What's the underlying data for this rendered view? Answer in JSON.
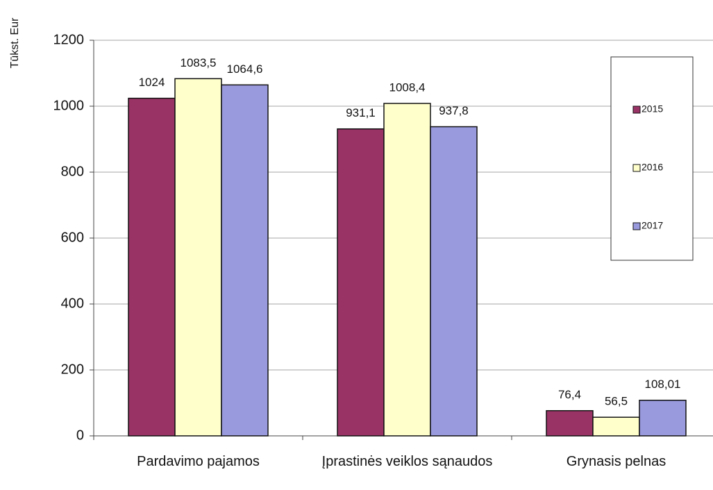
{
  "chart_data": {
    "type": "bar",
    "y_axis_label": "Tūkst. Eur",
    "categories": [
      "Pardavimo pajamos",
      "Įprastinės veiklos sąnaudos",
      "Grynasis pelnas"
    ],
    "series": [
      {
        "name": "2015",
        "color": "#993366",
        "values": [
          1024,
          931.1,
          76.4
        ],
        "value_labels": [
          "1024",
          "931,1",
          "76,4"
        ]
      },
      {
        "name": "2016",
        "color": "#ffffcc",
        "values": [
          1083.5,
          1008.4,
          56.5
        ],
        "value_labels": [
          "1083,5",
          "1008,4",
          "56,5"
        ]
      },
      {
        "name": "2017",
        "color": "#9999dd",
        "values": [
          1064.6,
          937.8,
          108.01
        ],
        "value_labels": [
          "1064,6",
          "937,8",
          "108,01"
        ]
      }
    ],
    "ylim": [
      0,
      1200
    ],
    "yticks": [
      0,
      200,
      400,
      600,
      800,
      1000,
      1200
    ],
    "grid": true,
    "legend": "right"
  }
}
